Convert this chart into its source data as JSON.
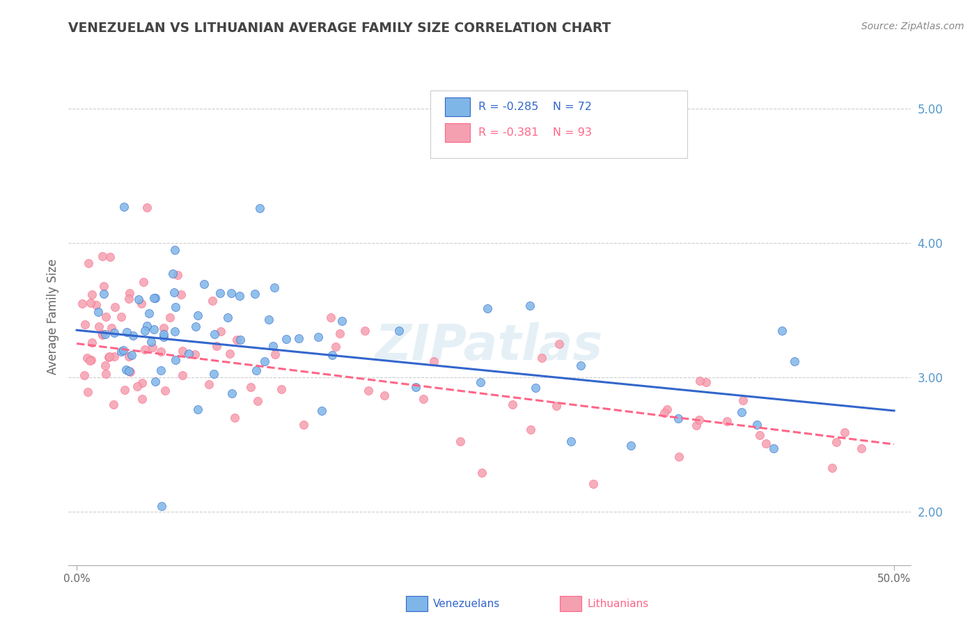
{
  "title": "VENEZUELAN VS LITHUANIAN AVERAGE FAMILY SIZE CORRELATION CHART",
  "source": "Source: ZipAtlas.com",
  "ylabel": "Average Family Size",
  "yticks": [
    2.0,
    3.0,
    4.0,
    5.0
  ],
  "ylim": [
    1.6,
    5.3
  ],
  "xlim": [
    -0.005,
    0.51
  ],
  "venezuelan_R": -0.285,
  "venezuelan_N": 72,
  "lithuanian_R": -0.381,
  "lithuanian_N": 93,
  "venezuelan_color": "#7EB6E8",
  "lithuanian_color": "#F4A0B0",
  "venezuelan_line_color": "#3366CC",
  "lithuanian_line_color": "#FF6688",
  "background_color": "#FFFFFF",
  "grid_color": "#CCCCCC",
  "title_color": "#444444",
  "axis_label_color": "#666666",
  "right_axis_color": "#5599CC",
  "watermark_color": "#CCDDEE",
  "venezuelan_seed": 42,
  "lithuanian_seed": 99,
  "slope_ven": -1.2,
  "intercept_ven": 3.35,
  "slope_lit": -1.5,
  "intercept_lit": 3.25
}
